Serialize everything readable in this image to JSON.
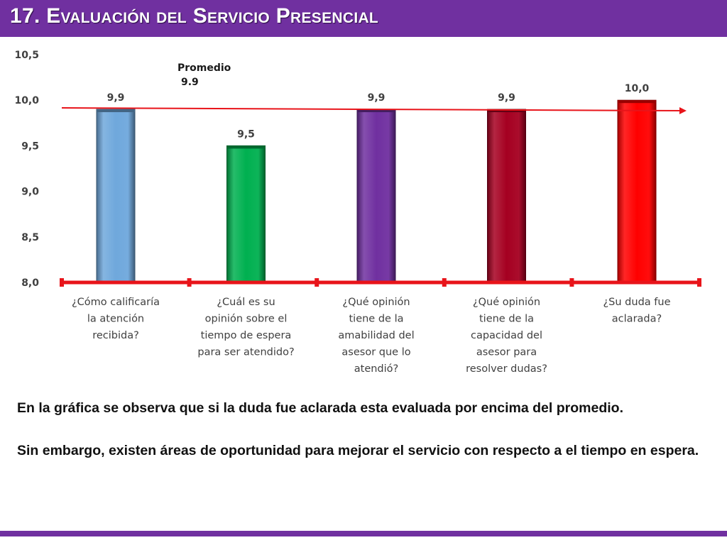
{
  "header": {
    "title": "17. Evaluación del Servicio Presencial"
  },
  "colors": {
    "header_bg": "#7030a0",
    "axis": "#e8141a",
    "average_line": "#e8141a"
  },
  "chart_data": {
    "type": "bar",
    "title": "",
    "xlabel": "",
    "ylabel": "",
    "ylim": [
      8.0,
      10.5
    ],
    "y_ticks": [
      "10,5",
      "10,0",
      "9,5",
      "9,0",
      "8,5",
      "8,0"
    ],
    "grid": false,
    "categories": [
      [
        "¿Cómo calificaría",
        "la atención",
        "recibida?"
      ],
      [
        "¿Cuál es su",
        "opinión sobre el",
        "tiempo de espera",
        "para ser atendido?"
      ],
      [
        "¿Qué opinión",
        "tiene de la",
        "amabilidad del",
        "asesor que lo",
        "atendió?"
      ],
      [
        "¿Qué opinión",
        "tiene de la",
        "capacidad del",
        "asesor para",
        "resolver dudas?"
      ],
      [
        "¿Su duda fue",
        "aclarada?"
      ]
    ],
    "values": [
      9.9,
      9.5,
      9.9,
      9.9,
      10.0
    ],
    "data_labels": [
      "9,9",
      "9,5",
      "9,9",
      "9,9",
      "10,0"
    ],
    "bar_colors": [
      "#6fa8dc",
      "#00b050",
      "#7030a0",
      "#a50021",
      "#ff0000"
    ],
    "average": {
      "value": 9.9,
      "label_lines": [
        "Promedio",
        "9.9"
      ]
    }
  },
  "text": {
    "p1": "En la gráfica se observa que si la duda fue aclarada esta evaluada por encima del promedio.",
    "p2": "Sin embargo, existen áreas de oportunidad para mejorar el servicio con respecto a el tiempo en espera."
  }
}
